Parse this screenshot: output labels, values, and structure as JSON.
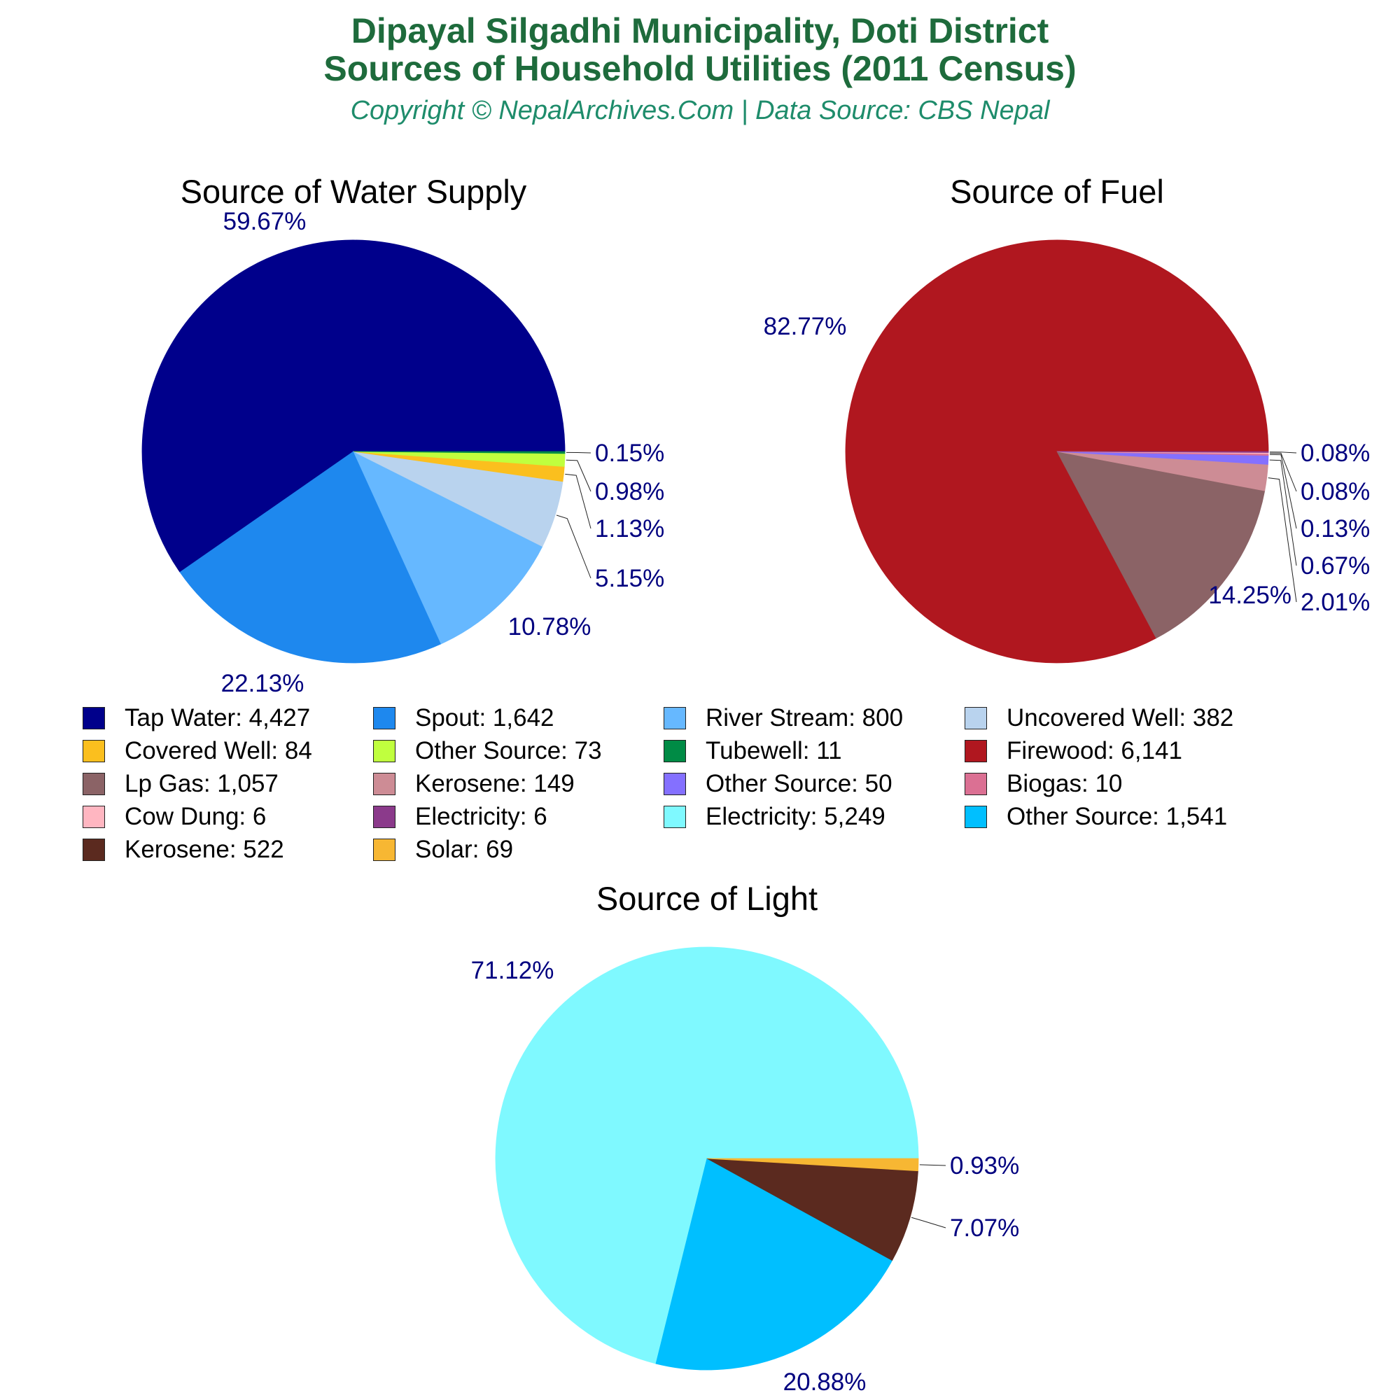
{
  "header": {
    "title_line1": "Dipayal Silgadhi Municipality, Doti District",
    "title_line2": "Sources of Household Utilities (2011 Census)",
    "subtitle": "Copyright © NepalArchives.Com | Data Source: CBS Nepal"
  },
  "colors": {
    "title": "#1e6b3c",
    "subtitle": "#1e8c6b",
    "pct_label": "#00007f"
  },
  "chart_data": [
    {
      "type": "pie",
      "title": "Source of Water Supply",
      "slices": [
        {
          "label": "Tap Water",
          "value": 4427,
          "pct": "59.67%",
          "color": "#00008b"
        },
        {
          "label": "Spout",
          "value": 1642,
          "pct": "22.13%",
          "color": "#1e88ee"
        },
        {
          "label": "River Stream",
          "value": 800,
          "pct": "10.78%",
          "color": "#66b8ff"
        },
        {
          "label": "Uncovered Well",
          "value": 382,
          "pct": "5.15%",
          "color": "#b9d3ee"
        },
        {
          "label": "Covered Well",
          "value": 84,
          "pct": "1.13%",
          "color": "#fbbf1e"
        },
        {
          "label": "Other Source",
          "value": 73,
          "pct": "0.98%",
          "color": "#c0ff3e"
        },
        {
          "label": "Tubewell",
          "value": 11,
          "pct": "0.15%",
          "color": "#008b45"
        }
      ]
    },
    {
      "type": "pie",
      "title": "Source of Fuel",
      "slices": [
        {
          "label": "Firewood",
          "value": 6141,
          "pct": "82.77%",
          "color": "#b0171f"
        },
        {
          "label": "Lp Gas",
          "value": 1057,
          "pct": "14.25%",
          "color": "#8b6366"
        },
        {
          "label": "Kerosene",
          "value": 149,
          "pct": "2.01%",
          "color": "#cd8c95"
        },
        {
          "label": "Other Source",
          "value": 50,
          "pct": "0.67%",
          "color": "#8470ff"
        },
        {
          "label": "Biogas",
          "value": 10,
          "pct": "0.13%",
          "color": "#db7093"
        },
        {
          "label": "Cow Dung",
          "value": 6,
          "pct": "0.08%",
          "color": "#ffb6c1"
        },
        {
          "label": "Electricity",
          "value": 6,
          "pct": "0.08%",
          "color": "#8b3a8b"
        }
      ]
    },
    {
      "type": "pie",
      "title": "Source of Light",
      "slices": [
        {
          "label": "Electricity",
          "value": 5249,
          "pct": "71.12%",
          "color": "#7ff9ff"
        },
        {
          "label": "Other Source",
          "value": 1541,
          "pct": "20.88%",
          "color": "#00bfff"
        },
        {
          "label": "Kerosene",
          "value": 522,
          "pct": "7.07%",
          "color": "#5b2a1f"
        },
        {
          "label": "Solar",
          "value": 69,
          "pct": "0.93%",
          "color": "#f7b733"
        }
      ]
    }
  ],
  "legend": [
    {
      "text": "Tap Water: 4,427",
      "color": "#00008b"
    },
    {
      "text": "Spout: 1,642",
      "color": "#1e88ee"
    },
    {
      "text": "River Stream: 800",
      "color": "#66b8ff"
    },
    {
      "text": "Uncovered Well: 382",
      "color": "#b9d3ee"
    },
    {
      "text": "Covered Well: 84",
      "color": "#fbbf1e"
    },
    {
      "text": "Other Source: 73",
      "color": "#c0ff3e"
    },
    {
      "text": "Tubewell: 11",
      "color": "#008b45"
    },
    {
      "text": "Firewood: 6,141",
      "color": "#b0171f"
    },
    {
      "text": "Lp Gas: 1,057",
      "color": "#8b6366"
    },
    {
      "text": "Kerosene: 149",
      "color": "#cd8c95"
    },
    {
      "text": "Other Source: 50",
      "color": "#8470ff"
    },
    {
      "text": "Biogas: 10",
      "color": "#db7093"
    },
    {
      "text": "Cow Dung: 6",
      "color": "#ffb6c1"
    },
    {
      "text": "Electricity: 6",
      "color": "#8b3a8b"
    },
    {
      "text": "Electricity: 5,249",
      "color": "#7ff9ff"
    },
    {
      "text": "Other Source: 1,541",
      "color": "#00bfff"
    },
    {
      "text": "Kerosene: 522",
      "color": "#5b2a1f"
    },
    {
      "text": "Solar: 69",
      "color": "#f7b733"
    }
  ]
}
